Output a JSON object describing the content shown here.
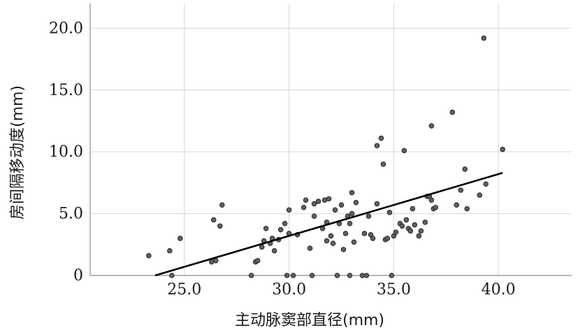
{
  "chart_data": {
    "type": "scatter",
    "xlabel": "主动脉窦部直径(mm)",
    "ylabel": "房间隔移动度(mm)",
    "xlim": [
      20.5,
      43.5
    ],
    "ylim": [
      0,
      22.0
    ],
    "grid": true,
    "x_ticks": [
      25.0,
      30.0,
      35.0,
      40.0
    ],
    "y_ticks": [
      0,
      5.0,
      10.0,
      15.0,
      20.0
    ],
    "x_tick_labels": [
      "25.0",
      "30.0",
      "35.0",
      "40.0"
    ],
    "y_tick_labels": [
      "0",
      "5.0",
      "10.0",
      "15.0",
      "20.0"
    ],
    "fit_line": {
      "x": [
        23.6,
        40.2
      ],
      "y": [
        0.0,
        8.3
      ]
    },
    "points": [
      {
        "x": 23.3,
        "y": 1.6
      },
      {
        "x": 24.3,
        "y": 2.0
      },
      {
        "x": 24.8,
        "y": 3.0
      },
      {
        "x": 24.4,
        "y": 0.0
      },
      {
        "x": 26.3,
        "y": 1.1
      },
      {
        "x": 26.5,
        "y": 1.2
      },
      {
        "x": 26.4,
        "y": 4.5
      },
      {
        "x": 26.7,
        "y": 4.0
      },
      {
        "x": 26.8,
        "y": 5.7
      },
      {
        "x": 28.2,
        "y": 0.0
      },
      {
        "x": 28.4,
        "y": 1.1
      },
      {
        "x": 28.5,
        "y": 1.2
      },
      {
        "x": 28.7,
        "y": 2.3
      },
      {
        "x": 28.8,
        "y": 2.8
      },
      {
        "x": 28.9,
        "y": 3.8
      },
      {
        "x": 29.1,
        "y": 2.6
      },
      {
        "x": 29.2,
        "y": 3.0
      },
      {
        "x": 29.3,
        "y": 2.0
      },
      {
        "x": 29.5,
        "y": 2.9
      },
      {
        "x": 29.6,
        "y": 3.7
      },
      {
        "x": 29.8,
        "y": 4.2
      },
      {
        "x": 29.9,
        "y": 0.0
      },
      {
        "x": 30.0,
        "y": 3.4
      },
      {
        "x": 30.0,
        "y": 5.3
      },
      {
        "x": 30.2,
        "y": 0.0
      },
      {
        "x": 30.4,
        "y": 3.3
      },
      {
        "x": 30.7,
        "y": 5.5
      },
      {
        "x": 30.8,
        "y": 6.1
      },
      {
        "x": 31.0,
        "y": 2.2
      },
      {
        "x": 31.1,
        "y": 0.0
      },
      {
        "x": 31.2,
        "y": 4.8
      },
      {
        "x": 31.2,
        "y": 5.8
      },
      {
        "x": 31.4,
        "y": 6.0
      },
      {
        "x": 31.6,
        "y": 3.8
      },
      {
        "x": 31.7,
        "y": 6.1
      },
      {
        "x": 31.8,
        "y": 4.3
      },
      {
        "x": 31.8,
        "y": 2.8
      },
      {
        "x": 31.9,
        "y": 6.2
      },
      {
        "x": 32.0,
        "y": 3.2
      },
      {
        "x": 32.1,
        "y": 2.6
      },
      {
        "x": 32.2,
        "y": 5.3
      },
      {
        "x": 32.3,
        "y": 0.0
      },
      {
        "x": 32.4,
        "y": 4.2
      },
      {
        "x": 32.5,
        "y": 5.7
      },
      {
        "x": 32.6,
        "y": 2.1
      },
      {
        "x": 32.7,
        "y": 3.4
      },
      {
        "x": 32.8,
        "y": 4.8
      },
      {
        "x": 32.9,
        "y": 4.2
      },
      {
        "x": 32.9,
        "y": 0.0
      },
      {
        "x": 33.0,
        "y": 5.0
      },
      {
        "x": 33.0,
        "y": 6.7
      },
      {
        "x": 33.1,
        "y": 2.7
      },
      {
        "x": 33.2,
        "y": 5.9
      },
      {
        "x": 33.5,
        "y": 0.0
      },
      {
        "x": 33.6,
        "y": 3.4
      },
      {
        "x": 33.7,
        "y": 0.0
      },
      {
        "x": 33.8,
        "y": 4.8
      },
      {
        "x": 33.9,
        "y": 3.3
      },
      {
        "x": 34.0,
        "y": 3.0
      },
      {
        "x": 34.2,
        "y": 5.8
      },
      {
        "x": 34.2,
        "y": 10.5
      },
      {
        "x": 34.4,
        "y": 11.1
      },
      {
        "x": 34.5,
        "y": 9.0
      },
      {
        "x": 34.6,
        "y": 2.9
      },
      {
        "x": 34.7,
        "y": 3.0
      },
      {
        "x": 34.8,
        "y": 5.1
      },
      {
        "x": 34.9,
        "y": 0.0
      },
      {
        "x": 35.0,
        "y": 3.2
      },
      {
        "x": 35.1,
        "y": 3.5
      },
      {
        "x": 35.3,
        "y": 4.2
      },
      {
        "x": 35.4,
        "y": 4.0
      },
      {
        "x": 35.5,
        "y": 10.1
      },
      {
        "x": 35.6,
        "y": 4.5
      },
      {
        "x": 35.7,
        "y": 3.8
      },
      {
        "x": 35.8,
        "y": 3.6
      },
      {
        "x": 35.9,
        "y": 5.4
      },
      {
        "x": 36.0,
        "y": 4.1
      },
      {
        "x": 36.2,
        "y": 3.2
      },
      {
        "x": 36.3,
        "y": 3.6
      },
      {
        "x": 36.5,
        "y": 4.3
      },
      {
        "x": 36.6,
        "y": 6.4
      },
      {
        "x": 36.7,
        "y": 6.4
      },
      {
        "x": 36.8,
        "y": 6.1
      },
      {
        "x": 36.9,
        "y": 5.4
      },
      {
        "x": 37.0,
        "y": 5.5
      },
      {
        "x": 36.8,
        "y": 12.1
      },
      {
        "x": 37.8,
        "y": 13.2
      },
      {
        "x": 38.0,
        "y": 5.7
      },
      {
        "x": 38.2,
        "y": 6.9
      },
      {
        "x": 38.4,
        "y": 8.6
      },
      {
        "x": 38.5,
        "y": 5.4
      },
      {
        "x": 39.1,
        "y": 6.5
      },
      {
        "x": 39.3,
        "y": 19.2
      },
      {
        "x": 39.4,
        "y": 7.4
      },
      {
        "x": 40.2,
        "y": 10.2
      }
    ]
  }
}
